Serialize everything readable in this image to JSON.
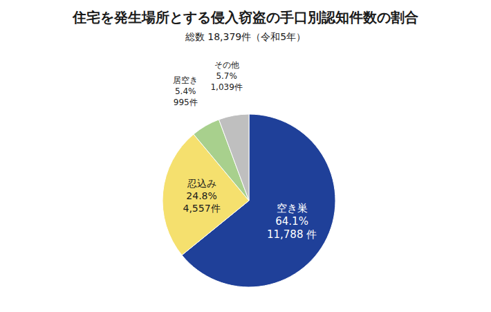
{
  "chart_data": {
    "type": "pie",
    "title": "住宅を発生場所とする侵入窃盗の手口別認知件数の割合",
    "subtitle": "総数 18,379件（令和5年）",
    "categories": [
      "空き巣",
      "忍込み",
      "居空き",
      "その他"
    ],
    "values": [
      11788,
      4557,
      995,
      1039
    ],
    "value_labels": [
      "11,788 件",
      "4,557件",
      "995件",
      "1,039件"
    ],
    "percentages": [
      64.1,
      24.8,
      5.4,
      5.7
    ],
    "percentage_labels": [
      "64.1%",
      "24.8%",
      "5.4%",
      "5.7%"
    ],
    "colors": [
      "#1f4099",
      "#f5e06e",
      "#a8d08d",
      "#bfbfbf"
    ]
  }
}
